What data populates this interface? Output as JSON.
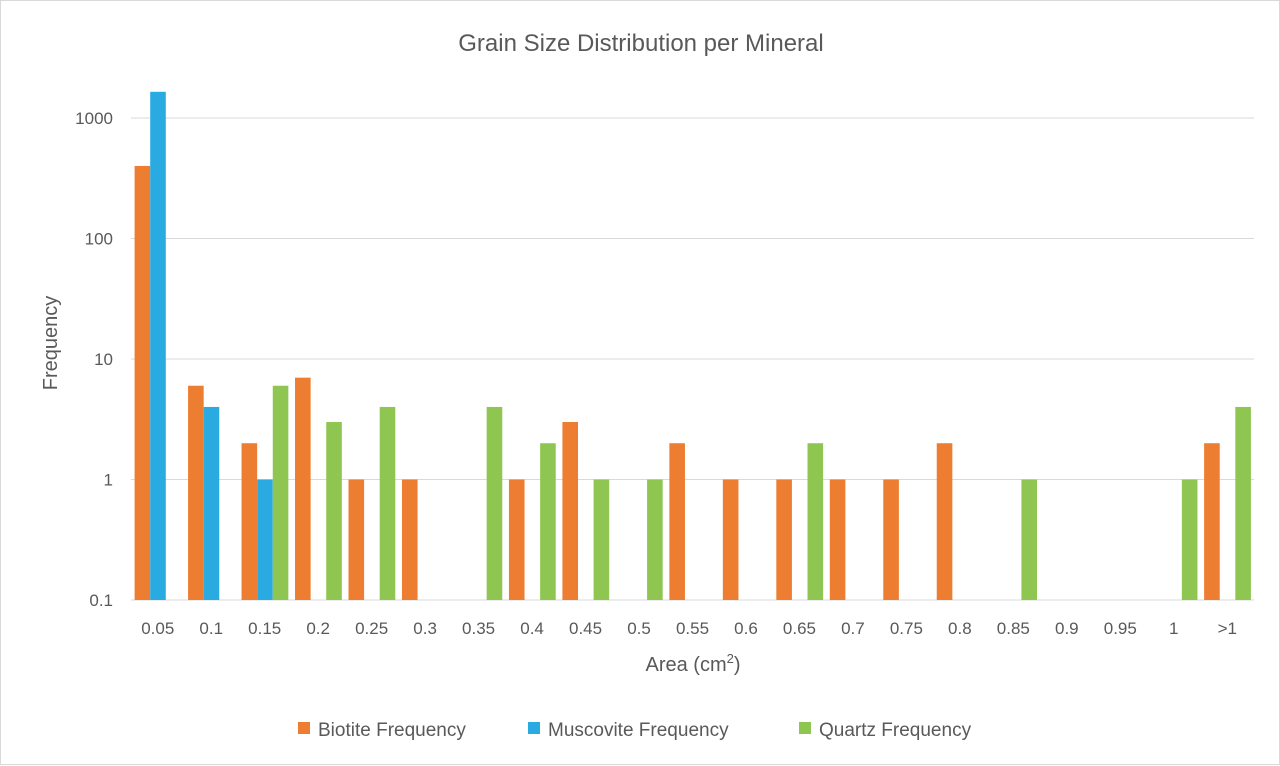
{
  "chart_data": {
    "type": "bar",
    "title": "Grain Size Distribution per Mineral",
    "xlabel": "Area (cm",
    "xlabel_sup": "2",
    "xlabel_close": ")",
    "ylabel": "Frequency",
    "yscale": "log",
    "ylim": [
      0.1,
      1000
    ],
    "yticks": [
      0.1,
      1,
      10,
      100,
      1000
    ],
    "ytick_labels": [
      "0.1",
      "1",
      "10",
      "100",
      "1000"
    ],
    "grid": true,
    "legend_position": "bottom",
    "categories": [
      "0.05",
      "0.1",
      "0.15",
      "0.2",
      "0.25",
      "0.3",
      "0.35",
      "0.4",
      "0.45",
      "0.5",
      "0.55",
      "0.6",
      "0.65",
      "0.7",
      "0.75",
      "0.8",
      "0.85",
      "0.9",
      "0.95",
      "1",
      ">1"
    ],
    "series": [
      {
        "name": "Biotite Frequency",
        "color": "#ED7D31",
        "values": [
          400,
          6,
          2,
          7,
          1,
          1,
          0,
          1,
          3,
          0,
          2,
          1,
          1,
          1,
          1,
          2,
          0,
          0,
          0,
          0,
          2
        ]
      },
      {
        "name": "Muscovite Frequency",
        "color": "#29ABE2",
        "values": [
          1650,
          4,
          1,
          0,
          0,
          0,
          0,
          0,
          0,
          0,
          0,
          0,
          0,
          0,
          0,
          0,
          0,
          0,
          0,
          0,
          0
        ]
      },
      {
        "name": "Quartz Frequency",
        "color": "#8FC651",
        "values": [
          0,
          0,
          6,
          3,
          4,
          0,
          4,
          2,
          1,
          1,
          0,
          0,
          2,
          0,
          0,
          0,
          1,
          0,
          0,
          1,
          4
        ]
      }
    ]
  }
}
